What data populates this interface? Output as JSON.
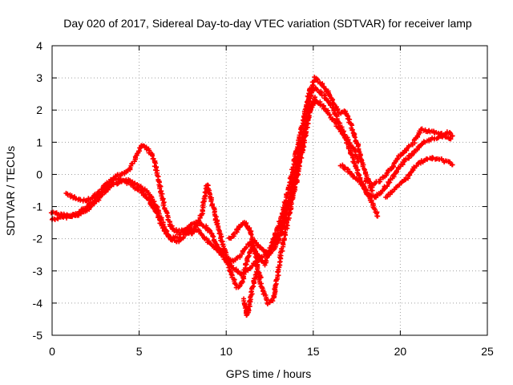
{
  "chart_data": {
    "type": "scatter",
    "title": "Day 020 of 2017, Sidereal Day-to-day VTEC variation (SDTVAR) for receiver lamp",
    "xlabel": "GPS time / hours",
    "ylabel": "SDTVAR / TECUs",
    "xlim": [
      0,
      25
    ],
    "ylim": [
      -5,
      4
    ],
    "xticks": [
      0,
      5,
      10,
      15,
      20,
      25
    ],
    "yticks": [
      -5,
      -4,
      -3,
      -2,
      -1,
      0,
      1,
      2,
      3,
      4
    ],
    "x_tick_labels": [
      "0",
      "5",
      "10",
      "15",
      "20",
      "25"
    ],
    "y_tick_labels": [
      "-5",
      "-4",
      "-3",
      "-2",
      "-1",
      "0",
      "1",
      "2",
      "3",
      "4"
    ],
    "grid": true,
    "marker": "+",
    "series": [
      {
        "color": "#ff0000",
        "points": [
          [
            0.0,
            -1.4
          ],
          [
            0.5,
            -1.35
          ],
          [
            1.0,
            -1.3
          ],
          [
            1.5,
            -1.2
          ],
          [
            2.0,
            -1.0
          ],
          [
            2.5,
            -0.75
          ],
          [
            3.0,
            -0.45
          ],
          [
            3.5,
            -0.2
          ],
          [
            4.0,
            -0.15
          ],
          [
            4.5,
            -0.2
          ],
          [
            5.0,
            -0.35
          ],
          [
            5.5,
            -0.55
          ],
          [
            6.0,
            -1.0
          ],
          [
            6.4,
            -1.6
          ],
          [
            6.8,
            -2.0
          ],
          [
            7.2,
            -2.1
          ],
          [
            7.6,
            -1.9
          ],
          [
            8.0,
            -1.7
          ],
          [
            8.4,
            -1.75
          ],
          [
            8.8,
            -2.0
          ],
          [
            9.2,
            -2.2
          ],
          [
            9.6,
            -2.4
          ],
          [
            10.0,
            -2.7
          ],
          [
            10.4,
            -2.9
          ],
          [
            10.8,
            -3.1
          ],
          [
            11.2,
            -3.0
          ],
          [
            11.6,
            -2.8
          ],
          [
            12.0,
            -2.6
          ],
          [
            12.4,
            -2.4
          ],
          [
            12.8,
            -2.1
          ],
          [
            13.2,
            -1.6
          ],
          [
            13.6,
            -0.8
          ],
          [
            14.0,
            0.2
          ],
          [
            14.4,
            1.2
          ],
          [
            14.8,
            2.0
          ],
          [
            15.2,
            2.3
          ],
          [
            15.6,
            2.1
          ],
          [
            16.0,
            1.8
          ],
          [
            16.4,
            1.5
          ],
          [
            16.8,
            1.2
          ],
          [
            17.2,
            0.9
          ],
          [
            17.6,
            0.4
          ]
        ]
      },
      {
        "color": "#ff0000",
        "points": [
          [
            0.0,
            -1.2
          ],
          [
            0.5,
            -1.25
          ],
          [
            1.0,
            -1.3
          ],
          [
            1.5,
            -1.25
          ],
          [
            2.0,
            -1.1
          ],
          [
            2.5,
            -0.85
          ],
          [
            3.0,
            -0.55
          ],
          [
            3.5,
            -0.3
          ],
          [
            4.0,
            -0.2
          ],
          [
            4.5,
            -0.3
          ],
          [
            5.0,
            -0.5
          ],
          [
            5.5,
            -0.75
          ],
          [
            6.0,
            -1.2
          ],
          [
            6.4,
            -1.7
          ],
          [
            6.8,
            -2.0
          ],
          [
            7.2,
            -1.95
          ],
          [
            7.6,
            -1.75
          ],
          [
            8.0,
            -1.55
          ],
          [
            8.4,
            -1.5
          ],
          [
            8.8,
            -1.6
          ],
          [
            9.2,
            -1.9
          ],
          [
            9.6,
            -2.3
          ],
          [
            10.0,
            -2.6
          ],
          [
            10.4,
            -2.7
          ],
          [
            10.8,
            -2.55
          ],
          [
            11.2,
            -2.2
          ],
          [
            11.6,
            -2.05
          ],
          [
            12.0,
            -2.3
          ],
          [
            12.4,
            -2.5
          ],
          [
            12.8,
            -2.3
          ],
          [
            13.2,
            -1.8
          ],
          [
            13.6,
            -1.0
          ],
          [
            14.0,
            0.0
          ],
          [
            14.4,
            1.0
          ],
          [
            14.8,
            2.4
          ],
          [
            15.1,
            2.7
          ],
          [
            15.5,
            2.5
          ],
          [
            16.0,
            2.2
          ],
          [
            16.4,
            1.7
          ],
          [
            16.8,
            1.2
          ],
          [
            17.2,
            0.6
          ],
          [
            17.6,
            0.0
          ],
          [
            18.0,
            -0.5
          ],
          [
            18.4,
            -0.9
          ],
          [
            18.7,
            -1.3
          ]
        ]
      },
      {
        "color": "#ff0000",
        "points": [
          [
            0.8,
            -0.6
          ],
          [
            1.2,
            -0.7
          ],
          [
            1.6,
            -0.8
          ],
          [
            2.0,
            -0.8
          ],
          [
            2.4,
            -0.7
          ],
          [
            2.8,
            -0.5
          ],
          [
            3.2,
            -0.25
          ],
          [
            3.6,
            -0.05
          ],
          [
            4.0,
            0.0
          ],
          [
            4.4,
            0.1
          ],
          [
            4.8,
            0.5
          ],
          [
            5.1,
            0.9
          ],
          [
            5.4,
            0.85
          ],
          [
            5.8,
            0.55
          ],
          [
            6.1,
            -0.1
          ],
          [
            6.4,
            -0.9
          ],
          [
            6.8,
            -1.6
          ],
          [
            7.2,
            -1.8
          ],
          [
            7.6,
            -1.7
          ],
          [
            8.0,
            -1.85
          ],
          [
            8.3,
            -1.6
          ],
          [
            8.6,
            -1.2
          ],
          [
            8.9,
            -0.3
          ],
          [
            9.2,
            -0.9
          ],
          [
            9.6,
            -1.8
          ],
          [
            10.0,
            -2.5
          ],
          [
            10.3,
            -3.1
          ],
          [
            10.6,
            -3.5
          ],
          [
            10.9,
            -3.4
          ],
          [
            11.2,
            -2.7
          ],
          [
            11.5,
            -2.2
          ],
          [
            11.8,
            -2.5
          ],
          [
            12.2,
            -2.8
          ],
          [
            12.5,
            -2.4
          ],
          [
            12.8,
            -1.9
          ],
          [
            13.2,
            -1.3
          ],
          [
            13.6,
            -0.4
          ],
          [
            14.0,
            0.6
          ],
          [
            14.4,
            1.6
          ],
          [
            14.8,
            2.6
          ],
          [
            15.1,
            3.0
          ],
          [
            15.5,
            2.8
          ],
          [
            15.9,
            2.5
          ],
          [
            16.2,
            2.2
          ],
          [
            16.5,
            1.9
          ],
          [
            16.8,
            2.0
          ],
          [
            17.2,
            1.5
          ],
          [
            17.6,
            0.8
          ],
          [
            18.0,
            0.0
          ],
          [
            18.4,
            -0.5
          ]
        ]
      },
      {
        "color": "#ff0000",
        "points": [
          [
            10.2,
            -2.0
          ],
          [
            10.5,
            -1.85
          ],
          [
            10.8,
            -1.6
          ],
          [
            11.1,
            -1.5
          ],
          [
            11.4,
            -1.8
          ],
          [
            11.7,
            -2.5
          ],
          [
            11.9,
            -3.2
          ],
          [
            12.1,
            -3.6
          ],
          [
            12.4,
            -4.0
          ],
          [
            12.7,
            -3.9
          ],
          [
            12.9,
            -3.3
          ],
          [
            13.1,
            -2.6
          ],
          [
            13.4,
            -1.8
          ],
          [
            13.7,
            -1.0
          ],
          [
            14.0,
            -0.3
          ],
          [
            14.4,
            0.8
          ],
          [
            14.8,
            2.0
          ],
          [
            15.1,
            2.4
          ]
        ]
      },
      {
        "color": "#ff0000",
        "points": [
          [
            11.0,
            -3.9
          ],
          [
            11.2,
            -4.4
          ],
          [
            11.4,
            -3.9
          ],
          [
            11.6,
            -3.3
          ],
          [
            11.8,
            -3.0
          ],
          [
            12.0,
            -3.2
          ]
        ]
      },
      {
        "color": "#ff0000",
        "points": [
          [
            16.6,
            0.3
          ],
          [
            17.0,
            0.1
          ],
          [
            17.4,
            -0.1
          ],
          [
            17.8,
            -0.3
          ],
          [
            18.2,
            -0.6
          ],
          [
            18.6,
            -0.7
          ],
          [
            19.0,
            -0.5
          ],
          [
            19.4,
            -0.2
          ],
          [
            19.8,
            0.1
          ],
          [
            20.2,
            0.4
          ],
          [
            20.6,
            0.6
          ],
          [
            21.0,
            0.8
          ],
          [
            21.4,
            1.0
          ],
          [
            21.8,
            1.1
          ],
          [
            22.2,
            1.15
          ],
          [
            22.6,
            1.2
          ],
          [
            22.9,
            1.1
          ]
        ]
      },
      {
        "color": "#ff0000",
        "points": [
          [
            18.0,
            -0.2
          ],
          [
            18.4,
            -0.3
          ],
          [
            18.8,
            -0.2
          ],
          [
            19.2,
            0.0
          ],
          [
            19.6,
            0.3
          ],
          [
            20.0,
            0.6
          ],
          [
            20.4,
            0.8
          ],
          [
            20.8,
            1.0
          ],
          [
            21.2,
            1.4
          ],
          [
            21.6,
            1.35
          ],
          [
            22.0,
            1.3
          ],
          [
            22.4,
            1.25
          ],
          [
            22.8,
            1.3
          ],
          [
            23.0,
            1.2
          ]
        ]
      },
      {
        "color": "#ff0000",
        "points": [
          [
            19.2,
            -0.7
          ],
          [
            19.6,
            -0.5
          ],
          [
            20.0,
            -0.3
          ],
          [
            20.4,
            -0.1
          ],
          [
            20.8,
            0.2
          ],
          [
            21.2,
            0.4
          ],
          [
            21.6,
            0.5
          ],
          [
            22.0,
            0.5
          ],
          [
            22.4,
            0.45
          ],
          [
            22.8,
            0.35
          ],
          [
            23.0,
            0.3
          ]
        ]
      }
    ]
  }
}
